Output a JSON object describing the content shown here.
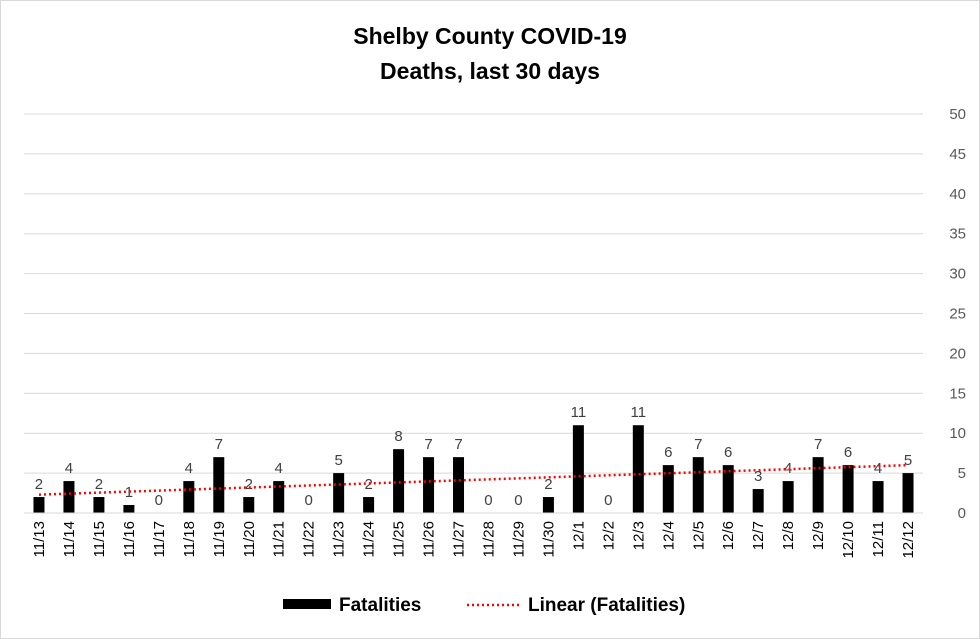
{
  "chart_data": {
    "type": "bar",
    "title_lines": [
      "Shelby County COVID-19",
      "Deaths, last 30 days"
    ],
    "categories": [
      "11/13",
      "11/14",
      "11/15",
      "11/16",
      "11/17",
      "11/18",
      "11/19",
      "11/20",
      "11/21",
      "11/22",
      "11/23",
      "11/24",
      "11/25",
      "11/26",
      "11/27",
      "11/28",
      "11/29",
      "11/30",
      "12/1",
      "12/2",
      "12/3",
      "12/4",
      "12/5",
      "12/6",
      "12/7",
      "12/8",
      "12/9",
      "12/10",
      "12/11",
      "12/12"
    ],
    "series": [
      {
        "name": "Fatalities",
        "values": [
          2,
          4,
          2,
          1,
          0,
          4,
          7,
          2,
          4,
          0,
          5,
          2,
          8,
          7,
          7,
          0,
          0,
          2,
          11,
          0,
          11,
          6,
          7,
          6,
          3,
          4,
          7,
          6,
          4,
          5
        ],
        "color": "#000000"
      }
    ],
    "trendline": {
      "name": "Linear (Fatalities)",
      "type": "linear",
      "color": "#ff0000",
      "start": 2.3,
      "end": 6.0
    },
    "y_axis": {
      "min": 0,
      "max": 50,
      "step": 5,
      "position": "right",
      "ticks": [
        "0",
        "5",
        "10",
        "15",
        "20",
        "25",
        "30",
        "35",
        "40",
        "45",
        "50"
      ]
    },
    "grid": true,
    "legend": {
      "position": "bottom",
      "entries": [
        "Fatalities",
        "Linear (Fatalities)"
      ]
    }
  }
}
